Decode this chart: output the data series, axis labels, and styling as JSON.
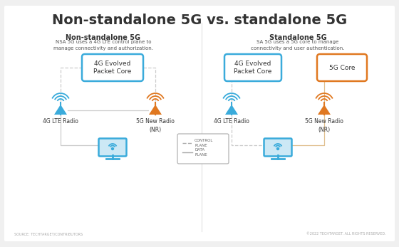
{
  "title": "Non-standalone 5G vs. standalone 5G",
  "title_fontsize": 14,
  "title_fontweight": "bold",
  "background_color": "#f0f0f0",
  "blue_color": "#3aabdb",
  "orange_color": "#e07820",
  "gray_line": "#bbbbbb",
  "left_subtitle": "Non-standalone 5G",
  "left_desc": "NSA 5G uses a 4G LTE control plane to\nmanage connectivity and authorization.",
  "right_subtitle": "Standalone 5G",
  "right_desc": "SA 5G uses a 5G core to manage\nconnectivity and user authentication.",
  "nsa_box_label": "4G Evolved\nPacket Core",
  "sa_epc_label": "4G Evolved\nPacket Core",
  "sa_5g_label": "5G Core",
  "lte_radio_label": "4G LTE Radio",
  "nr_radio_label": "5G New Radio\n(NR)",
  "legend_control": "CONTROL\nPLANE",
  "legend_data": "DATA\nPLANE",
  "footer_left": "SOURCE: TECHTARGET/CONTRIBUTORS",
  "footer_right": "©2022 TECHTARGET. ALL RIGHTS RESERVED.",
  "text_dark": "#333333",
  "text_mid": "#555555"
}
